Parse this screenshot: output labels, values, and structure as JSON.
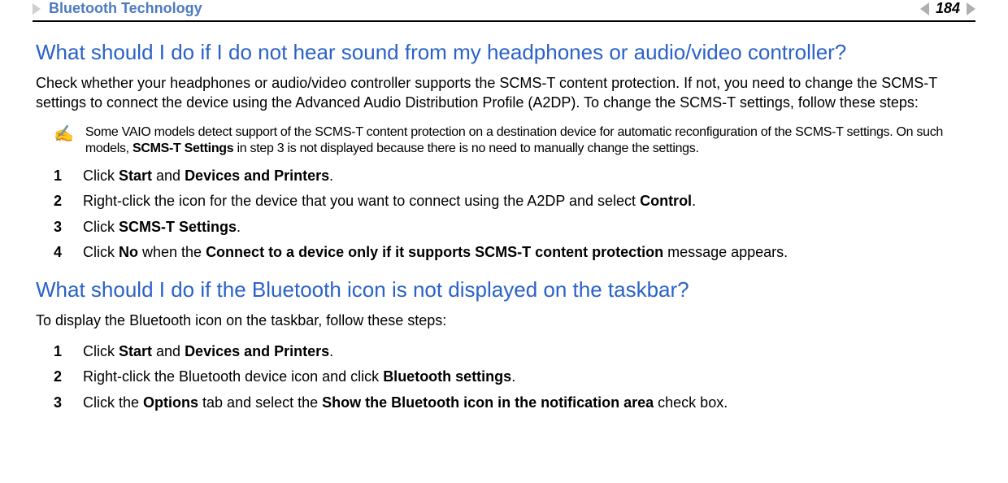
{
  "header": {
    "breadcrumb_title": "Bluetooth Technology",
    "page_number": "184"
  },
  "colors": {
    "heading_link": "#2a62c8",
    "breadcrumb_title": "#4d7abf",
    "rule": "#000000",
    "arrow_gray": "#b0b0b0"
  },
  "sections": [
    {
      "heading": "What should I do if I do not hear sound from my headphones or audio/video controller?",
      "intro": "Check whether your headphones or audio/video controller supports the SCMS-T content protection. If not, you need to change the SCMS-T settings to connect the device using the Advanced Audio Distribution Profile (A2DP). To change the SCMS-T settings, follow these steps:",
      "note_icon": "✍",
      "note_pre": "Some VAIO models detect support of the SCMS-T content protection on a destination device for automatic reconfiguration of the SCMS-T settings. On such models, ",
      "note_bold": "SCMS-T Settings",
      "note_post": " in step 3 is not displayed because there is no need to manually change the settings.",
      "steps": [
        {
          "n": "1",
          "pre": "Click ",
          "b1": "Start",
          "mid": " and ",
          "b2": "Devices and Printers",
          "post": "."
        },
        {
          "n": "2",
          "pre": "Right-click the icon for the device that you want to connect using the A2DP and select ",
          "b1": "Control",
          "mid": "",
          "b2": "",
          "post": "."
        },
        {
          "n": "3",
          "pre": "Click ",
          "b1": "SCMS-T Settings",
          "mid": "",
          "b2": "",
          "post": "."
        },
        {
          "n": "4",
          "pre": "Click ",
          "b1": "No",
          "mid": " when the ",
          "b2": "Connect to a device only if it supports SCMS-T content protection",
          "post": " message appears."
        }
      ]
    },
    {
      "heading": "What should I do if the Bluetooth icon is not displayed on the taskbar?",
      "intro": "To display the Bluetooth icon on the taskbar, follow these steps:",
      "steps": [
        {
          "n": "1",
          "pre": "Click ",
          "b1": "Start",
          "mid": " and ",
          "b2": "Devices and Printers",
          "post": "."
        },
        {
          "n": "2",
          "pre": "Right-click the Bluetooth device icon and click ",
          "b1": "Bluetooth settings",
          "mid": "",
          "b2": "",
          "post": "."
        },
        {
          "n": "3",
          "pre": "Click the ",
          "b1": "Options",
          "mid": " tab and select the ",
          "b2": "Show the Bluetooth icon in the notification area",
          "post": " check box."
        }
      ]
    }
  ]
}
